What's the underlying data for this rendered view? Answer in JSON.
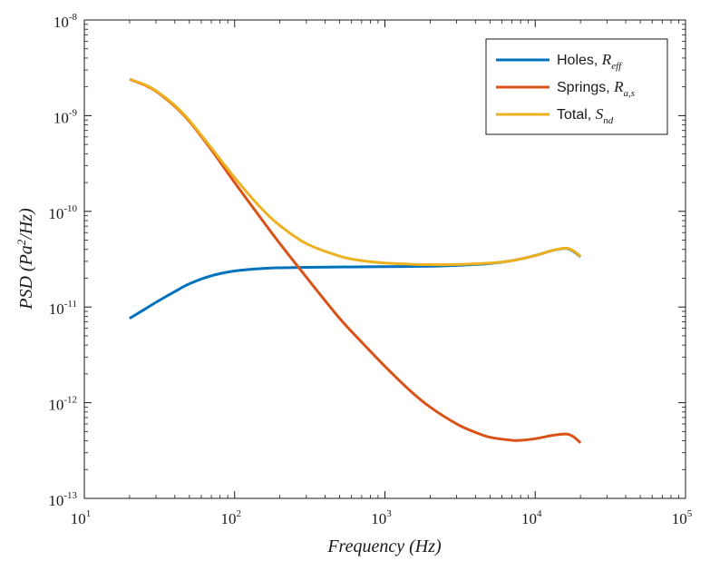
{
  "chart_data": {
    "type": "line",
    "title": "",
    "xlabel": "Frequency (Hz)",
    "ylabel": {
      "pre": "PSD (Pa",
      "sup": "2",
      "post": "/Hz)"
    },
    "xscale": "log",
    "yscale": "log",
    "xlim": [
      10,
      100000
    ],
    "ylim": [
      1e-13,
      1e-08
    ],
    "grid": false,
    "legend_position": "top-right",
    "x_ticks": [
      {
        "value": 10,
        "base": "10",
        "exp": "1"
      },
      {
        "value": 100,
        "base": "10",
        "exp": "2"
      },
      {
        "value": 1000,
        "base": "10",
        "exp": "3"
      },
      {
        "value": 10000,
        "base": "10",
        "exp": "4"
      },
      {
        "value": 100000,
        "base": "10",
        "exp": "5"
      }
    ],
    "y_ticks": [
      {
        "value": 1e-13,
        "base": "10",
        "exp": "-13"
      },
      {
        "value": 1e-12,
        "base": "10",
        "exp": "-12"
      },
      {
        "value": 1e-11,
        "base": "10",
        "exp": "-11"
      },
      {
        "value": 1e-10,
        "base": "10",
        "exp": "-10"
      },
      {
        "value": 1e-09,
        "base": "10",
        "exp": "-9"
      },
      {
        "value": 1e-08,
        "base": "10",
        "exp": "-8"
      }
    ],
    "series": [
      {
        "name": "Holes, R_eff",
        "label": "Holes, ",
        "symbol": "R",
        "subscript": "eff",
        "color": "#0072BD",
        "x": [
          20,
          25,
          30,
          40,
          50,
          70,
          100,
          150,
          200,
          300,
          500,
          1000,
          2000,
          3000,
          5000,
          7000,
          10000,
          13000,
          16000,
          18000,
          20000
        ],
        "y": [
          7.6e-12,
          9.4e-12,
          1.12e-11,
          1.45e-11,
          1.75e-11,
          2.12e-11,
          2.38e-11,
          2.52e-11,
          2.57e-11,
          2.6e-11,
          2.62e-11,
          2.64e-11,
          2.67e-11,
          2.72e-11,
          2.85e-11,
          3.05e-11,
          3.45e-11,
          3.9e-11,
          4.1e-11,
          3.8e-11,
          3.35e-11
        ]
      },
      {
        "name": "Springs, R_a,s",
        "label": "Springs, ",
        "symbol": "R",
        "subscript": "a,s",
        "color": "#D95319",
        "x": [
          20,
          25,
          30,
          40,
          50,
          70,
          100,
          150,
          200,
          300,
          500,
          700,
          1000,
          1500,
          2000,
          3000,
          4000,
          5000,
          7000,
          8000,
          10000,
          13000,
          16000,
          18000,
          20000
        ],
        "y": [
          2.4e-09,
          2.1e-09,
          1.8e-09,
          1.25e-09,
          8.7e-10,
          4.4e-10,
          2e-10,
          8.4e-11,
          4.6e-11,
          2.05e-11,
          7.6e-12,
          4.3e-12,
          2.4e-12,
          1.3e-12,
          9e-13,
          6e-13,
          4.9e-13,
          4.35e-13,
          4.05e-13,
          4.05e-13,
          4.2e-13,
          4.55e-13,
          4.7e-13,
          4.4e-13,
          3.8e-13
        ]
      },
      {
        "name": "Total, S_nd",
        "label": "Total, ",
        "symbol": "S",
        "subscript": "nd",
        "color": "#EDB120",
        "x": [
          20,
          25,
          30,
          40,
          50,
          70,
          100,
          150,
          200,
          300,
          500,
          700,
          1000,
          1500,
          2000,
          3000,
          5000,
          7000,
          10000,
          13000,
          16000,
          18000,
          20000
        ],
        "y": [
          2.4e-09,
          2.12e-09,
          1.82e-09,
          1.28e-09,
          8.9e-10,
          4.6e-10,
          2.25e-10,
          1.08e-10,
          7.1e-11,
          4.6e-11,
          3.4e-11,
          3.05e-11,
          2.88e-11,
          2.8e-11,
          2.77e-11,
          2.78e-11,
          2.88e-11,
          3.05e-11,
          3.45e-11,
          3.9e-11,
          4.12e-11,
          3.85e-11,
          3.38e-11
        ]
      }
    ]
  }
}
